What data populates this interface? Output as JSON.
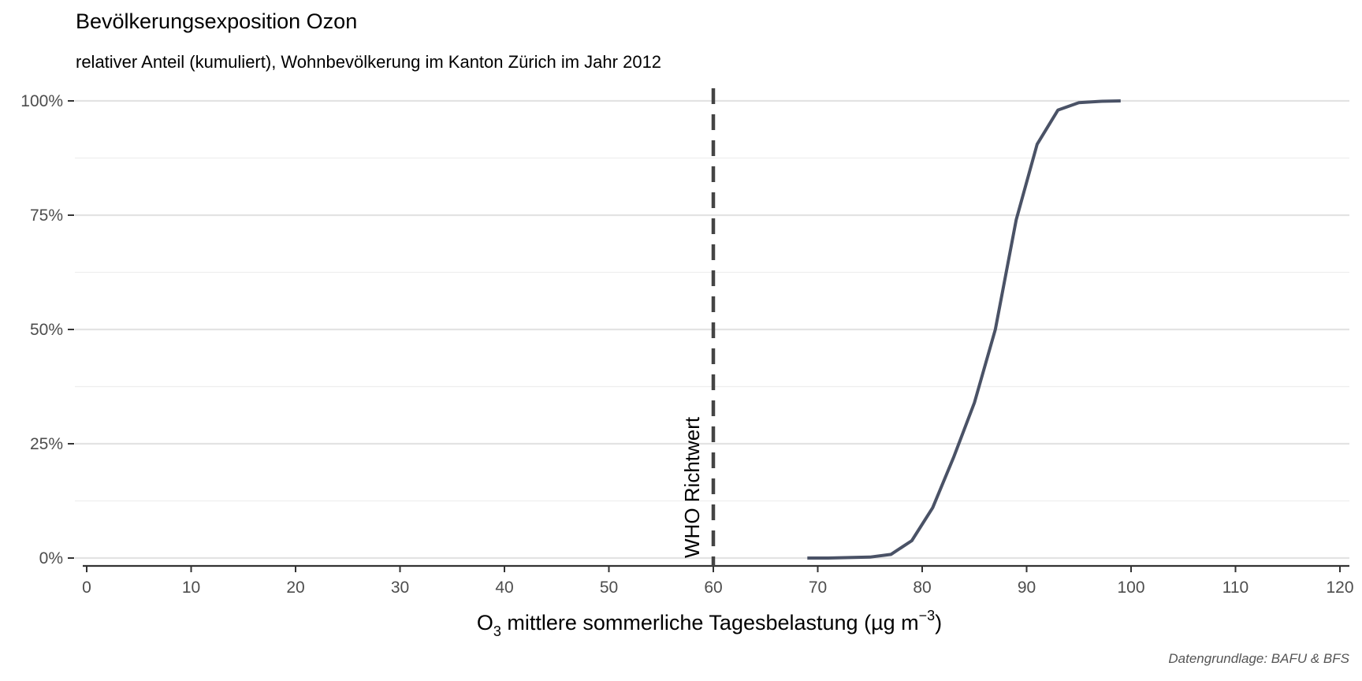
{
  "chart_data": {
    "type": "line",
    "title": "Bevölkerungsexposition Ozon",
    "subtitle": "relativer Anteil (kumuliert), Wohnbevölkerung im Kanton Zürich im Jahr 2012",
    "xlabel": {
      "prefix": "O",
      "subscript": "3",
      "middle": " mittlere sommerliche Tagesbelastung (µg m",
      "superscript": "−3",
      "suffix": ")"
    },
    "ylabel": "",
    "caption": "Datengrundlage: BAFU & BFS",
    "xlim": [
      0,
      120
    ],
    "ylim": [
      0,
      100
    ],
    "x_ticks": [
      0,
      10,
      20,
      30,
      40,
      50,
      60,
      70,
      80,
      90,
      100,
      110,
      120
    ],
    "x_tick_labels": [
      "0",
      "10",
      "20",
      "30",
      "40",
      "50",
      "60",
      "70",
      "80",
      "90",
      "100",
      "110",
      "120"
    ],
    "y_ticks": [
      0,
      25,
      50,
      75,
      100
    ],
    "y_tick_labels": [
      "0%",
      "25%",
      "50%",
      "75%",
      "100%"
    ],
    "grid": "horizontal",
    "series": [
      {
        "color": "#4a5266",
        "points": [
          [
            69,
            0
          ],
          [
            71,
            0
          ],
          [
            73,
            0.1
          ],
          [
            75,
            0.2
          ],
          [
            77,
            0.8
          ],
          [
            79,
            3.8
          ],
          [
            81,
            11
          ],
          [
            83,
            22
          ],
          [
            85,
            34
          ],
          [
            87,
            50
          ],
          [
            89,
            74
          ],
          [
            91,
            90.5
          ],
          [
            93,
            98
          ],
          [
            95,
            99.6
          ],
          [
            97,
            99.9
          ],
          [
            99,
            100
          ]
        ]
      }
    ],
    "reference_line": {
      "x": 60,
      "style": "dashed",
      "color": "#444444",
      "label": "WHO Richtwert"
    }
  }
}
